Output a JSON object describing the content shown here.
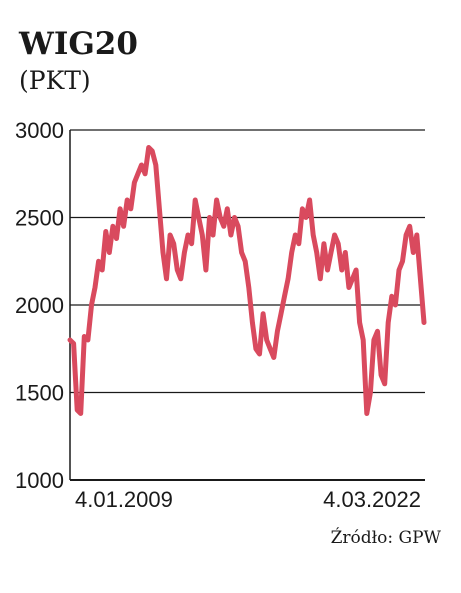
{
  "header": {
    "title": "WIG20",
    "unit": "(PKT)"
  },
  "footer": {
    "source": "Źródło: GPW"
  },
  "colors": {
    "line": "#d94a5e",
    "grid": "#1a1a1a",
    "text": "#1a1a1a"
  },
  "chart_data": {
    "type": "line",
    "title": "WIG20",
    "ylabel": "(PKT)",
    "xlabel": "",
    "ylim": [
      1000,
      3000
    ],
    "yticks": [
      1000,
      1500,
      2000,
      2500,
      3000
    ],
    "xtick_labels": [
      "4.01.2009",
      "4.03.2022"
    ],
    "x_range": [
      "2009-01-04",
      "2022-03-04"
    ],
    "grid": "horizontal",
    "series": [
      {
        "values": [
          1800,
          1780,
          1400,
          1380,
          1820,
          1800,
          2000,
          2100,
          2250,
          2200,
          2420,
          2300,
          2450,
          2380,
          2550,
          2450,
          2600,
          2550,
          2700,
          2750,
          2800,
          2750,
          2900,
          2880,
          2800,
          2550,
          2300,
          2150,
          2400,
          2350,
          2200,
          2150,
          2300,
          2400,
          2350,
          2600,
          2500,
          2400,
          2200,
          2500,
          2400,
          2600,
          2500,
          2450,
          2550,
          2400,
          2500,
          2450,
          2300,
          2250,
          2100,
          1900,
          1750,
          1720,
          1950,
          1800,
          1750,
          1700,
          1850,
          1950,
          2050,
          2150,
          2300,
          2400,
          2350,
          2550,
          2500,
          2600,
          2400,
          2300,
          2150,
          2350,
          2200,
          2300,
          2400,
          2350,
          2200,
          2300,
          2100,
          2150,
          2200,
          1900,
          1800,
          1380,
          1500,
          1800,
          1850,
          1600,
          1550,
          1900,
          2050,
          2000,
          2200,
          2250,
          2400,
          2450,
          2300,
          2400,
          2150,
          1900
        ]
      }
    ]
  }
}
